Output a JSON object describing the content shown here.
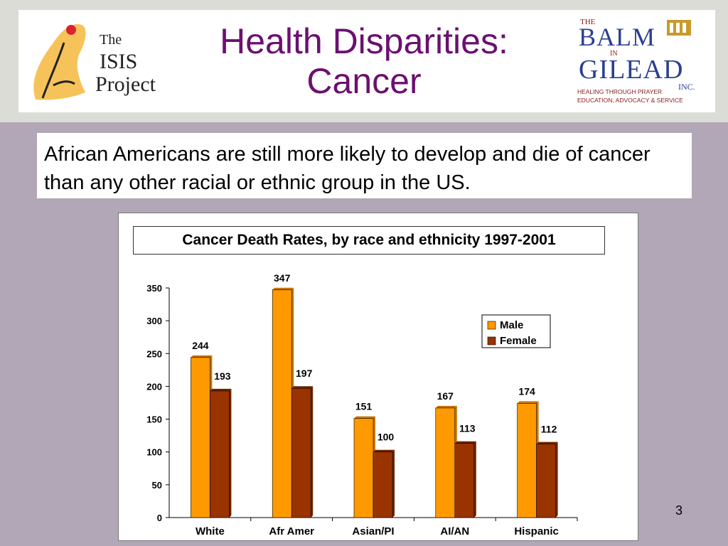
{
  "slide": {
    "title_line1": "Health Disparities:",
    "title_line2": "Cancer",
    "intro": "African Americans are still more likely to develop and die of cancer than any other racial or ethnic group in the US.",
    "page_number": "3"
  },
  "logos": {
    "isis": {
      "line1": "The",
      "line2": "ISIS",
      "line3": "Project"
    },
    "balm": {
      "word1": "THE",
      "word2": "BALM",
      "word3": "IN",
      "word4": "GILEAD",
      "suffix": "INC.",
      "tagline1": "HEALING THROUGH PRAYER",
      "tagline2": "EDUCATION, ADVOCACY & SERVICE"
    }
  },
  "colors": {
    "title": "#6b1070",
    "male": "#ff9900",
    "female": "#993300",
    "background": "#b2a7b6"
  },
  "chart_data": {
    "type": "bar",
    "title": "Cancer Death Rates, by race and ethnicity 1997-2001",
    "categories": [
      "White",
      "Afr Amer",
      "Asian/PI",
      "AI/AN",
      "Hispanic"
    ],
    "series": [
      {
        "name": "Male",
        "values": [
          244,
          347,
          151,
          167,
          174
        ]
      },
      {
        "name": "Female",
        "values": [
          193,
          197,
          100,
          113,
          112
        ]
      }
    ],
    "ylim": [
      0,
      350
    ],
    "yticks": [
      0,
      50,
      100,
      150,
      200,
      250,
      300,
      350
    ],
    "grid": false,
    "legend": "right",
    "xlabel": "",
    "ylabel": ""
  }
}
